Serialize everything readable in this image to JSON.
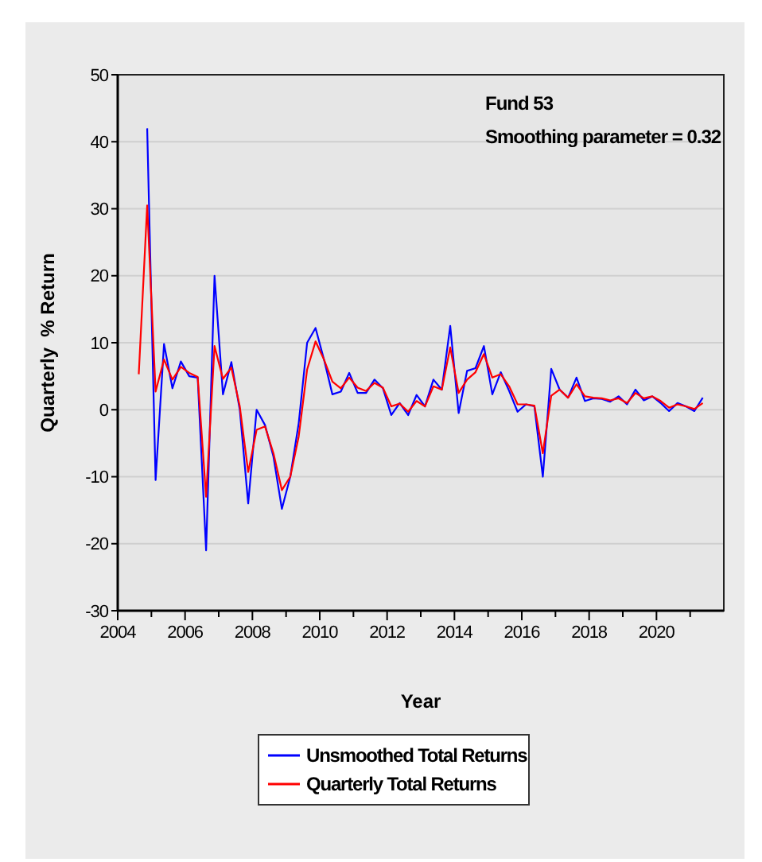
{
  "chart_data": {
    "type": "line",
    "xlabel": "Year",
    "ylabel": "Quarterly  % Return",
    "annotations": [
      "Fund 53",
      "Smoothing parameter = 0.32"
    ],
    "x": [
      2004.625,
      2004.875,
      2005.125,
      2005.375,
      2005.625,
      2005.875,
      2006.125,
      2006.375,
      2006.625,
      2006.875,
      2007.125,
      2007.375,
      2007.625,
      2007.875,
      2008.125,
      2008.375,
      2008.625,
      2008.875,
      2009.125,
      2009.375,
      2009.625,
      2009.875,
      2010.125,
      2010.375,
      2010.625,
      2010.875,
      2011.125,
      2011.375,
      2011.625,
      2011.875,
      2012.125,
      2012.375,
      2012.625,
      2012.875,
      2013.125,
      2013.375,
      2013.625,
      2013.875,
      2014.125,
      2014.375,
      2014.625,
      2014.875,
      2015.125,
      2015.375,
      2015.625,
      2015.875,
      2016.125,
      2016.375,
      2016.625,
      2016.875,
      2017.125,
      2017.375,
      2017.625,
      2017.875,
      2018.125,
      2018.375,
      2018.625,
      2018.875,
      2019.125,
      2019.375,
      2019.625,
      2019.875,
      2020.125,
      2020.375,
      2020.625,
      2020.875,
      2021.125,
      2021.375
    ],
    "series": [
      {
        "name": "Unsmoothed Total Returns",
        "color": "#0000ff",
        "values": [
          null,
          42,
          -10.5,
          9.8,
          3.2,
          7.2,
          5,
          4.8,
          -21,
          20,
          2.3,
          7.1,
          0,
          -14,
          0,
          -2.3,
          -7,
          -14.8,
          -10,
          -2,
          10,
          12.2,
          7.5,
          2.3,
          2.7,
          5.5,
          2.5,
          2.5,
          4.5,
          3.2,
          -0.8,
          1,
          -0.8,
          2.2,
          0.5,
          4.5,
          3,
          12.5,
          -0.5,
          5.8,
          6.2,
          9.5,
          2.3,
          5.6,
          2.8,
          -0.3,
          0.8,
          0.5,
          -10,
          6.1,
          3,
          1.8,
          4.8,
          1.3,
          1.7,
          1.6,
          1.2,
          2,
          0.8,
          3,
          1.4,
          2,
          1,
          -0.2,
          1,
          0.5,
          -0.2,
          1.8
        ]
      },
      {
        "name": "Quarterly Total Returns",
        "color": "#ff0000",
        "values": [
          5.3,
          30.5,
          2.7,
          7.5,
          4.5,
          6.4,
          5.5,
          4.9,
          -13,
          9.5,
          4.6,
          6.3,
          0.5,
          -9.3,
          -3,
          -2.5,
          -6.5,
          -12,
          -10,
          -4,
          6,
          10.2,
          7.5,
          4.2,
          3.2,
          4.8,
          3.3,
          2.8,
          4,
          3.3,
          0.5,
          0.9,
          -0.3,
          1.3,
          0.5,
          3.5,
          3,
          9.3,
          2.5,
          4.5,
          5.6,
          8.3,
          4.8,
          5.3,
          3.5,
          0.8,
          0.8,
          0.6,
          -6.5,
          2.1,
          3,
          1.8,
          3.8,
          2,
          1.8,
          1.7,
          1.4,
          1.7,
          1,
          2.5,
          1.7,
          2,
          1.3,
          0.3,
          0.8,
          0.5,
          0.1,
          1
        ]
      }
    ],
    "xlim": [
      2004,
      2022
    ],
    "xticks": [
      2004,
      {
        "value": 2005,
        "label": null
      },
      2006,
      {
        "value": 2007,
        "label": null
      },
      2008,
      {
        "value": 2009,
        "label": null
      },
      2010,
      {
        "value": 2011,
        "label": null
      },
      2012,
      {
        "value": 2013,
        "label": null
      },
      2014,
      {
        "value": 2015,
        "label": null
      },
      2016,
      {
        "value": 2017,
        "label": null
      },
      2018,
      {
        "value": 2019,
        "label": null
      },
      2020,
      {
        "value": 2021,
        "label": null
      }
    ],
    "ylim": [
      -30,
      50
    ],
    "yticks": [
      -30,
      -20,
      -10,
      0,
      10,
      20,
      30,
      40,
      50
    ],
    "grid": "y",
    "legend": "bottom",
    "marker": "none",
    "line_style": "solid"
  }
}
